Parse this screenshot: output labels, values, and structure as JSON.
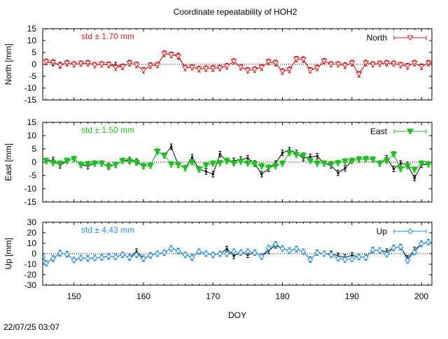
{
  "title": "Coordinate repeatability of HOH2",
  "footer_timestamp": "22/07/25 03:07",
  "chart_data": [
    {
      "type": "line",
      "panel": "north",
      "ylabel": "North [mm]",
      "ylim": [
        -15,
        15
      ],
      "yticks": [
        15,
        10,
        5,
        0,
        -5,
        -10,
        -15
      ],
      "xlim": [
        145.5,
        201.5
      ],
      "grid": false,
      "zero_line": "dotted",
      "legend_position": "top-right",
      "annotation": "std ± 1.70 mm",
      "annotation_color": "#e31a1c",
      "series": [
        {
          "name": "North",
          "color": "#e31a1c",
          "marker": "triangle-down-open",
          "x": [
            146,
            147,
            148,
            149,
            150,
            151,
            152,
            153,
            154,
            155,
            156,
            157,
            158,
            159,
            160,
            161,
            162,
            163,
            164,
            165,
            166,
            167,
            168,
            169,
            170,
            171,
            172,
            173,
            174,
            175,
            176,
            177,
            178,
            179,
            180,
            181,
            182,
            183,
            184,
            185,
            186,
            187,
            188,
            189,
            190,
            191,
            192,
            193,
            194,
            195,
            196,
            197,
            198,
            199,
            200,
            201,
            202
          ],
          "y": [
            1.0,
            0.8,
            -0.5,
            0.5,
            0.0,
            0.3,
            0.5,
            -0.3,
            0.0,
            -0.2,
            -1.3,
            -1.0,
            0.5,
            -0.2,
            -2.5,
            -0.5,
            -0.3,
            4.5,
            4.0,
            3.3,
            -1.5,
            -1.2,
            -2.0,
            -1.8,
            -1.7,
            -1.5,
            -0.8,
            1.2,
            -1.2,
            -2.5,
            -2.2,
            -1.3,
            1.0,
            0.5,
            -3.0,
            -2.3,
            2.2,
            2.0,
            -2.5,
            -1.5,
            1.3,
            0.0,
            0.0,
            -0.5,
            0.5,
            -4.2,
            0.5,
            0.0,
            0.3,
            0.5,
            0.3,
            -0.3,
            -0.8,
            0.5,
            -1.0,
            0.5,
            1.0
          ],
          "y_ref": [
            1.0,
            0.6,
            -0.3,
            0.5,
            0.0,
            0.3,
            0.5,
            -0.3,
            0.0,
            -0.2,
            -0.3,
            -1.0,
            0.5,
            -0.2,
            -2.5,
            -0.5,
            -0.3,
            4.5,
            4.0,
            3.5,
            -1.5,
            -1.2,
            -2.0,
            -1.8,
            -1.7,
            -1.5,
            -0.8,
            1.2,
            -1.2,
            -2.5,
            -2.2,
            -1.3,
            1.0,
            0.5,
            -3.0,
            -2.3,
            2.2,
            2.0,
            -2.5,
            -1.5,
            1.3,
            0.0,
            0.0,
            -0.5,
            0.5,
            -4.2,
            0.5,
            0.0,
            0.3,
            0.5,
            0.3,
            -0.3,
            -0.8,
            0.5,
            -1.0,
            0.5,
            1.0
          ]
        }
      ]
    },
    {
      "type": "line",
      "panel": "east",
      "ylabel": "East [mm]",
      "ylim": [
        -15,
        15
      ],
      "yticks": [
        15,
        10,
        5,
        0,
        -5,
        -10,
        -15
      ],
      "xlim": [
        145.5,
        201.5
      ],
      "grid": false,
      "zero_line": "dotted",
      "legend_position": "top-right",
      "annotation": "std ± 1.50 mm",
      "annotation_color": "#1fbf1f",
      "series": [
        {
          "name": "East",
          "color": "#1fbf1f",
          "marker": "triangle-down-filled",
          "x": [
            146,
            147,
            148,
            149,
            150,
            151,
            152,
            153,
            154,
            155,
            156,
            157,
            158,
            159,
            160,
            161,
            162,
            163,
            164,
            165,
            166,
            167,
            168,
            169,
            170,
            171,
            172,
            173,
            174,
            175,
            176,
            177,
            178,
            179,
            180,
            181,
            182,
            183,
            184,
            185,
            186,
            187,
            188,
            189,
            190,
            191,
            192,
            193,
            194,
            195,
            196,
            197,
            198,
            199,
            200,
            201,
            202
          ],
          "y": [
            0.5,
            -0.3,
            -0.5,
            0.5,
            1.2,
            -1.0,
            -0.7,
            -0.5,
            -0.5,
            -1.8,
            -1.0,
            0.5,
            0.3,
            -0.2,
            -1.5,
            -1.3,
            4.0,
            2.5,
            -0.8,
            -1.0,
            -2.2,
            0.0,
            -2.7,
            -1.2,
            -0.5,
            -0.3,
            0.5,
            -0.5,
            0.2,
            -0.5,
            -0.7,
            -1.5,
            -2.0,
            -1.5,
            -0.5,
            3.5,
            2.8,
            2.5,
            0.5,
            -0.5,
            -0.5,
            -0.7,
            -0.3,
            0.3,
            0.5,
            1.0,
            1.2,
            1.0,
            -0.5,
            0.5,
            3.0,
            -2.5,
            -1.5,
            -2.8,
            -0.5,
            -0.8,
            1.0
          ],
          "y_ref": [
            0.5,
            0.8,
            -1.2,
            0.5,
            1.2,
            -1.0,
            -1.5,
            -0.5,
            -0.5,
            -1.5,
            -1.0,
            0.5,
            0.8,
            0.2,
            -1.5,
            -1.3,
            4.0,
            2.5,
            5.8,
            -1.0,
            -2.2,
            1.8,
            -2.7,
            -3.5,
            -4.5,
            3.0,
            0.5,
            0.5,
            1.0,
            1.5,
            -0.5,
            -4.5,
            -2.5,
            -0.5,
            3.5,
            4.5,
            3.5,
            1.5,
            2.0,
            2.2,
            -0.5,
            -1.2,
            -4.0,
            -2.3,
            0.5,
            1.0,
            1.2,
            1.0,
            -0.5,
            1.5,
            -2.5,
            -0.5,
            -1.0,
            -6.0,
            -1.0,
            -0.8,
            1.0
          ]
        }
      ]
    },
    {
      "type": "line",
      "panel": "up",
      "ylabel": "Up [mm]",
      "ylim": [
        -30,
        30
      ],
      "yticks": [
        30,
        20,
        10,
        0,
        -10,
        -20,
        -30
      ],
      "xlim": [
        145.5,
        201.5
      ],
      "xticks": [
        150,
        160,
        170,
        180,
        190,
        200
      ],
      "xlabel": "DOY",
      "grid": false,
      "zero_line": "dotted",
      "legend_position": "top-right",
      "annotation": "std ± 4.43 mm",
      "annotation_color": "#1f8fe3",
      "series": [
        {
          "name": "Up",
          "color": "#1f8fe3",
          "marker": "diamond-open",
          "x": [
            145.5,
            146,
            147,
            148,
            149,
            150,
            151,
            152,
            153,
            154,
            155,
            156,
            157,
            158,
            159,
            160,
            161,
            162,
            163,
            164,
            165,
            166,
            167,
            168,
            169,
            170,
            171,
            172,
            173,
            174,
            175,
            176,
            177,
            178,
            179,
            180,
            181,
            182,
            183,
            184,
            185,
            186,
            187,
            188,
            189,
            190,
            191,
            192,
            193,
            194,
            195,
            196,
            197,
            198,
            199,
            200,
            201,
            202
          ],
          "y": [
            -3.0,
            -9.0,
            -4.5,
            0.5,
            -0.5,
            -6.0,
            -4.0,
            -4.5,
            -4.0,
            -3.5,
            -2.5,
            -3.0,
            -1.0,
            -3.5,
            -1.0,
            -4.5,
            -1.5,
            0.0,
            1.0,
            5.0,
            2.5,
            -1.0,
            -3.5,
            2.0,
            0.0,
            -1.0,
            0.0,
            0.0,
            2.0,
            1.0,
            2.0,
            1.0,
            -2.5,
            5.5,
            9.0,
            5.0,
            3.0,
            4.5,
            2.0,
            -5.5,
            1.0,
            0.0,
            -1.0,
            -4.5,
            -5.5,
            -5.0,
            -3.0,
            -3.5,
            3.5,
            3.0,
            -0.5,
            5.5,
            6.5,
            -6.5,
            1.5,
            9.5,
            11.0,
            9.0
          ],
          "y_ref": [
            -3.0,
            -9.0,
            -4.5,
            0.5,
            -0.5,
            -6.0,
            -4.0,
            -4.5,
            -4.0,
            -3.5,
            -2.5,
            -3.0,
            -1.0,
            -3.5,
            2.0,
            -4.5,
            -1.5,
            0.0,
            1.0,
            5.0,
            2.5,
            -1.0,
            -3.5,
            2.0,
            0.0,
            -1.0,
            0.0,
            4.5,
            -2.0,
            1.0,
            -1.0,
            1.0,
            -2.5,
            3.0,
            8.0,
            5.0,
            3.0,
            4.5,
            2.0,
            -5.5,
            1.0,
            0.0,
            0.0,
            -2.0,
            -3.5,
            -1.5,
            -3.0,
            -3.5,
            3.5,
            3.0,
            2.0,
            5.5,
            6.5,
            -4.5,
            3.5,
            9.5,
            11.0,
            9.0
          ]
        }
      ]
    }
  ]
}
